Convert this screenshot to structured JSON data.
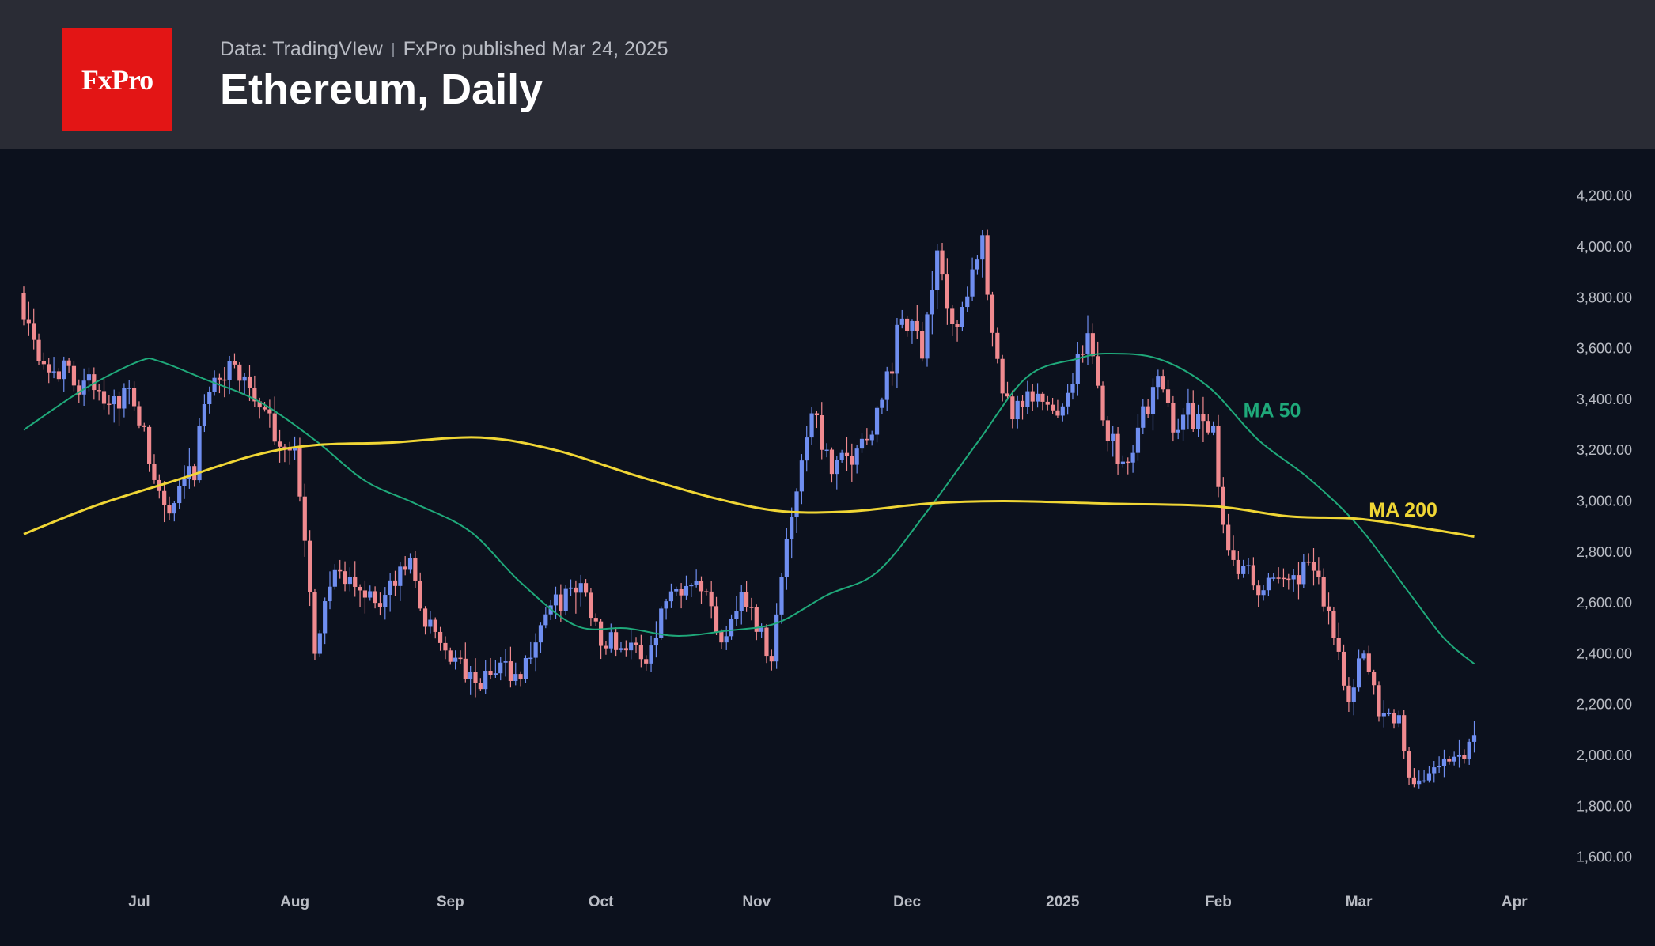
{
  "header": {
    "logo_text": "FxPro",
    "data_source": "Data: TradingVIew",
    "publisher": "FxPro published Mar 24, 2025",
    "title": "Ethereum, Daily"
  },
  "colors": {
    "background": "#0c111d",
    "header_bg": "#2a2c35",
    "logo_bg": "#e31515",
    "up_candle": "#6f8ef0",
    "down_candle": "#f08a8f",
    "ma50": "#1fa97a",
    "ma200": "#f0d635"
  },
  "chart_data": {
    "type": "candlestick",
    "title": "Ethereum, Daily",
    "ylim": [
      1500,
      4350
    ],
    "y_ticks": [
      "1,600.00",
      "1,800.00",
      "2,000.00",
      "2,200.00",
      "2,400.00",
      "2,600.00",
      "2,800.00",
      "3,000.00",
      "3,200.00",
      "3,400.00",
      "3,600.00",
      "3,800.00",
      "4,000.00",
      "4,200.00"
    ],
    "x_ticks": [
      "Jul",
      "Aug",
      "Sep",
      "Oct",
      "Nov",
      "Dec",
      "2025",
      "Feb",
      "Mar",
      "Apr"
    ],
    "x_start": "2024-06-08",
    "x_end": "2025-04-06",
    "grid": false,
    "close_anchors": [
      [
        "2024-06-08",
        3780
      ],
      [
        "2024-06-12",
        3560
      ],
      [
        "2024-06-17",
        3490
      ],
      [
        "2024-06-23",
        3430
      ],
      [
        "2024-06-30",
        3400
      ],
      [
        "2024-07-04",
        3080
      ],
      [
        "2024-07-07",
        2940
      ],
      [
        "2024-07-12",
        3120
      ],
      [
        "2024-07-15",
        3480
      ],
      [
        "2024-07-22",
        3510
      ],
      [
        "2024-07-27",
        3290
      ],
      [
        "2024-08-01",
        3200
      ],
      [
        "2024-08-05",
        2420
      ],
      [
        "2024-08-08",
        2690
      ],
      [
        "2024-08-14",
        2660
      ],
      [
        "2024-08-18",
        2600
      ],
      [
        "2024-08-24",
        2760
      ],
      [
        "2024-08-27",
        2520
      ],
      [
        "2024-09-06",
        2270
      ],
      [
        "2024-09-11",
        2350
      ],
      [
        "2024-09-15",
        2310
      ],
      [
        "2024-09-20",
        2560
      ],
      [
        "2024-09-27",
        2670
      ],
      [
        "2024-10-01",
        2470
      ],
      [
        "2024-10-06",
        2430
      ],
      [
        "2024-10-10",
        2380
      ],
      [
        "2024-10-14",
        2620
      ],
      [
        "2024-10-20",
        2730
      ],
      [
        "2024-10-25",
        2460
      ],
      [
        "2024-10-29",
        2640
      ],
      [
        "2024-11-04",
        2390
      ],
      [
        "2024-11-07",
        2850
      ],
      [
        "2024-11-10",
        3170
      ],
      [
        "2024-11-12",
        3380
      ],
      [
        "2024-11-16",
        3100
      ],
      [
        "2024-11-22",
        3230
      ],
      [
        "2024-11-26",
        3400
      ],
      [
        "2024-11-30",
        3710
      ],
      [
        "2024-12-04",
        3620
      ],
      [
        "2024-12-07",
        3990
      ],
      [
        "2024-12-10",
        3650
      ],
      [
        "2024-12-12",
        3810
      ],
      [
        "2024-12-16",
        3980
      ],
      [
        "2024-12-18",
        3620
      ],
      [
        "2024-12-20",
        3380
      ],
      [
        "2024-12-23",
        3350
      ],
      [
        "2024-12-26",
        3390
      ],
      [
        "2024-12-31",
        3360
      ],
      [
        "2025-01-06",
        3640
      ],
      [
        "2025-01-09",
        3330
      ],
      [
        "2025-01-13",
        3140
      ],
      [
        "2025-01-16",
        3290
      ],
      [
        "2025-01-20",
        3460
      ],
      [
        "2025-01-23",
        3320
      ],
      [
        "2025-01-27",
        3340
      ],
      [
        "2025-01-31",
        3250
      ],
      [
        "2025-02-02",
        2880
      ],
      [
        "2025-02-06",
        2720
      ],
      [
        "2025-02-10",
        2650
      ],
      [
        "2025-02-15",
        2700
      ],
      [
        "2025-02-20",
        2740
      ],
      [
        "2025-02-24",
        2500
      ],
      [
        "2025-02-27",
        2220
      ],
      [
        "2025-03-02",
        2410
      ],
      [
        "2025-03-05",
        2180
      ],
      [
        "2025-03-09",
        2150
      ],
      [
        "2025-03-11",
        1890
      ],
      [
        "2025-03-15",
        1930
      ],
      [
        "2025-03-19",
        1980
      ],
      [
        "2025-03-22",
        2010
      ],
      [
        "2025-03-24",
        2080
      ]
    ],
    "series": [
      {
        "name": "MA 50",
        "values": [
          [
            "2024-06-08",
            3280
          ],
          [
            "2024-06-20",
            3440
          ],
          [
            "2024-07-01",
            3550
          ],
          [
            "2024-07-05",
            3550
          ],
          [
            "2024-07-14",
            3480
          ],
          [
            "2024-07-25",
            3390
          ],
          [
            "2024-08-05",
            3240
          ],
          [
            "2024-08-15",
            3080
          ],
          [
            "2024-08-25",
            2990
          ],
          [
            "2024-09-05",
            2880
          ],
          [
            "2024-09-15",
            2680
          ],
          [
            "2024-09-26",
            2510
          ],
          [
            "2024-10-06",
            2500
          ],
          [
            "2024-10-16",
            2470
          ],
          [
            "2024-10-26",
            2490
          ],
          [
            "2024-11-05",
            2520
          ],
          [
            "2024-11-15",
            2630
          ],
          [
            "2024-11-25",
            2720
          ],
          [
            "2024-12-05",
            2960
          ],
          [
            "2024-12-15",
            3230
          ],
          [
            "2024-12-25",
            3490
          ],
          [
            "2025-01-04",
            3560
          ],
          [
            "2025-01-10",
            3580
          ],
          [
            "2025-01-20",
            3560
          ],
          [
            "2025-01-30",
            3450
          ],
          [
            "2025-02-09",
            3240
          ],
          [
            "2025-02-19",
            3090
          ],
          [
            "2025-03-01",
            2900
          ],
          [
            "2025-03-11",
            2640
          ],
          [
            "2025-03-18",
            2460
          ],
          [
            "2025-03-24",
            2360
          ]
        ]
      },
      {
        "name": "MA 200",
        "values": [
          [
            "2024-06-08",
            2870
          ],
          [
            "2024-06-22",
            2980
          ],
          [
            "2024-07-08",
            3080
          ],
          [
            "2024-07-24",
            3180
          ],
          [
            "2024-08-05",
            3220
          ],
          [
            "2024-08-20",
            3230
          ],
          [
            "2024-09-07",
            3250
          ],
          [
            "2024-09-22",
            3200
          ],
          [
            "2024-10-08",
            3100
          ],
          [
            "2024-10-24",
            3010
          ],
          [
            "2024-11-06",
            2960
          ],
          [
            "2024-11-20",
            2960
          ],
          [
            "2024-12-05",
            2990
          ],
          [
            "2024-12-20",
            3000
          ],
          [
            "2025-01-10",
            2990
          ],
          [
            "2025-01-31",
            2980
          ],
          [
            "2025-02-15",
            2940
          ],
          [
            "2025-03-01",
            2930
          ],
          [
            "2025-03-15",
            2890
          ],
          [
            "2025-03-24",
            2860
          ]
        ]
      }
    ],
    "annotations": [
      {
        "text": "MA 50",
        "at": [
          "2025-02-06",
          3330
        ],
        "color": "#1fa97a"
      },
      {
        "text": "MA 200",
        "at": [
          "2025-03-03",
          2940
        ],
        "color": "#f0d635"
      }
    ]
  }
}
